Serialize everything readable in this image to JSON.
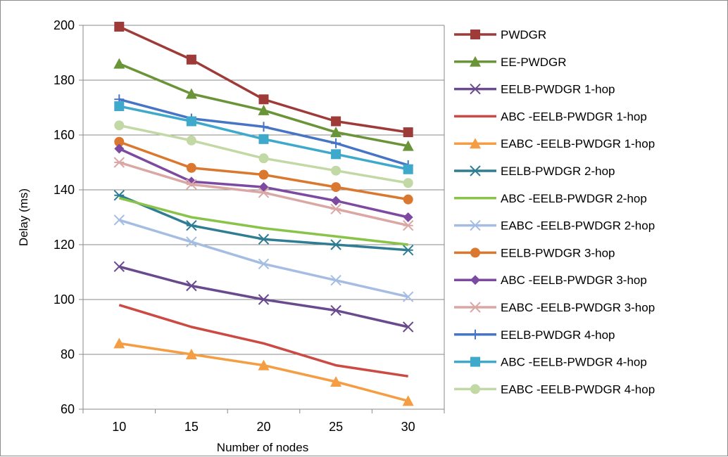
{
  "chart_data": {
    "type": "line",
    "title": "",
    "xlabel": "Number of nodes",
    "ylabel": "Delay (ms)",
    "x": [
      10,
      15,
      20,
      25,
      30
    ],
    "ylim": [
      60,
      200
    ],
    "yticks": [
      60,
      80,
      100,
      120,
      140,
      160,
      180,
      200
    ],
    "grid": "horizontal",
    "legend_position": "right",
    "series": [
      {
        "name": "PWDGR",
        "color": "#9e3b38",
        "marker": "square",
        "values": [
          199.5,
          187.5,
          173,
          165,
          161
        ]
      },
      {
        "name": "EE-PWDGR",
        "color": "#6a9438",
        "marker": "triangle",
        "values": [
          186,
          175,
          169,
          161,
          156
        ]
      },
      {
        "name": "EELB-PWDGR 1-hop",
        "color": "#6a4a8e",
        "marker": "x",
        "values": [
          112,
          105,
          100,
          96,
          90
        ]
      },
      {
        "name": "ABC -EELB-PWDGR 1-hop",
        "color": "#cc4a43",
        "marker": "none",
        "values": [
          98,
          90,
          84,
          76,
          72
        ]
      },
      {
        "name": "EABC -EELB-PWDGR 1-hop",
        "color": "#f59d42",
        "marker": "triangle",
        "values": [
          84,
          80,
          76,
          70,
          63
        ]
      },
      {
        "name": "EELB-PWDGR 2-hop",
        "color": "#2e7d92",
        "marker": "star",
        "values": [
          138,
          127,
          122,
          120,
          118
        ]
      },
      {
        "name": "ABC -EELB-PWDGR 2-hop",
        "color": "#8ac349",
        "marker": "none",
        "values": [
          137,
          130,
          126,
          123,
          120
        ]
      },
      {
        "name": "EABC -EELB-PWDGR 2-hop",
        "color": "#a6bde3",
        "marker": "x",
        "values": [
          129,
          121,
          113,
          107,
          101
        ]
      },
      {
        "name": "EELB-PWDGR 3-hop",
        "color": "#d9782e",
        "marker": "circle",
        "values": [
          157.5,
          148,
          145.5,
          141,
          136.5
        ]
      },
      {
        "name": "ABC -EELB-PWDGR 3-hop",
        "color": "#7d4aa1",
        "marker": "diamond",
        "values": [
          155,
          143,
          141,
          136,
          130
        ]
      },
      {
        "name": "EABC -EELB-PWDGR 3-hop",
        "color": "#daa7a5",
        "marker": "star",
        "values": [
          150,
          142,
          139,
          133,
          127
        ]
      },
      {
        "name": "EELB-PWDGR 4-hop",
        "color": "#4774c5",
        "marker": "plus",
        "values": [
          173,
          166,
          163,
          157,
          149
        ]
      },
      {
        "name": "ABC -EELB-PWDGR 4-hop",
        "color": "#3fa9cc",
        "marker": "square",
        "values": [
          170.5,
          165,
          158.5,
          153,
          147.5
        ]
      },
      {
        "name": "EABC -EELB-PWDGR 4-hop",
        "color": "#c2d8a5",
        "marker": "circle",
        "values": [
          163.5,
          158,
          151.5,
          147,
          142.5
        ]
      }
    ]
  }
}
